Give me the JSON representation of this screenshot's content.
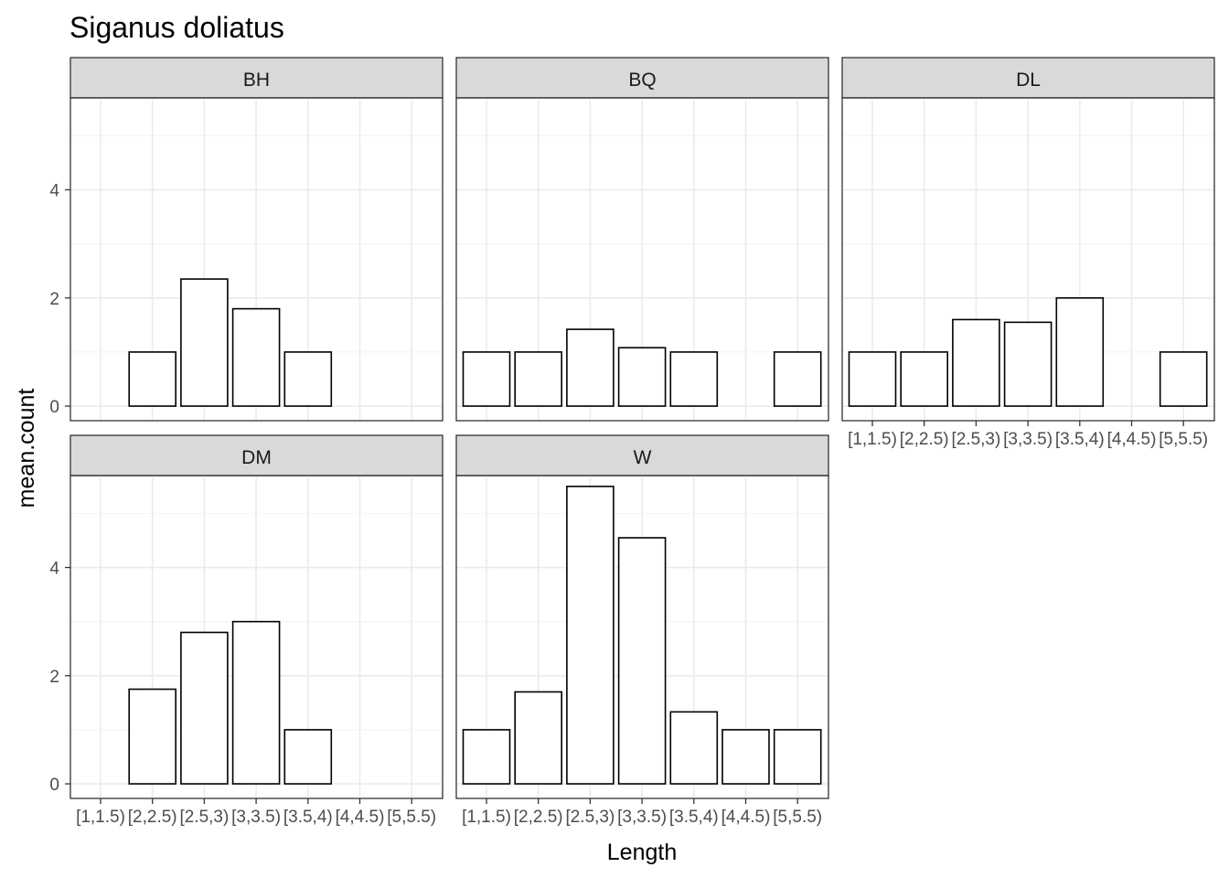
{
  "chart_data": {
    "type": "bar",
    "title": "Siganus doliatus",
    "xlabel": "Length",
    "ylabel": "mean.count",
    "categories": [
      "[1,1.5)",
      "[2,2.5)",
      "[2.5,3)",
      "[3,3.5)",
      "[3.5,4)",
      "[4,4.5)",
      "[5,5.5)"
    ],
    "y_ticks": [
      0,
      2,
      4
    ],
    "ylim": [
      -0.27,
      5.7
    ],
    "grid": true,
    "legend": "none",
    "colors": {
      "bar_fill": "#ffffff",
      "bar_outline": "#000000",
      "strip_fill": "#d9d9d9",
      "grid": "#ebebeb"
    },
    "panels": [
      {
        "name": "BH",
        "values": [
          null,
          1,
          2.35,
          1.8,
          1,
          null,
          null
        ]
      },
      {
        "name": "BQ",
        "values": [
          1,
          1,
          1.42,
          1.08,
          1,
          null,
          1
        ]
      },
      {
        "name": "DL",
        "values": [
          1,
          1,
          1.6,
          1.55,
          2,
          null,
          1
        ]
      },
      {
        "name": "DM",
        "values": [
          null,
          1.75,
          2.8,
          3,
          1,
          null,
          null
        ]
      },
      {
        "name": "W",
        "values": [
          1,
          1.7,
          5.5,
          4.55,
          1.33,
          1,
          1
        ]
      }
    ]
  }
}
